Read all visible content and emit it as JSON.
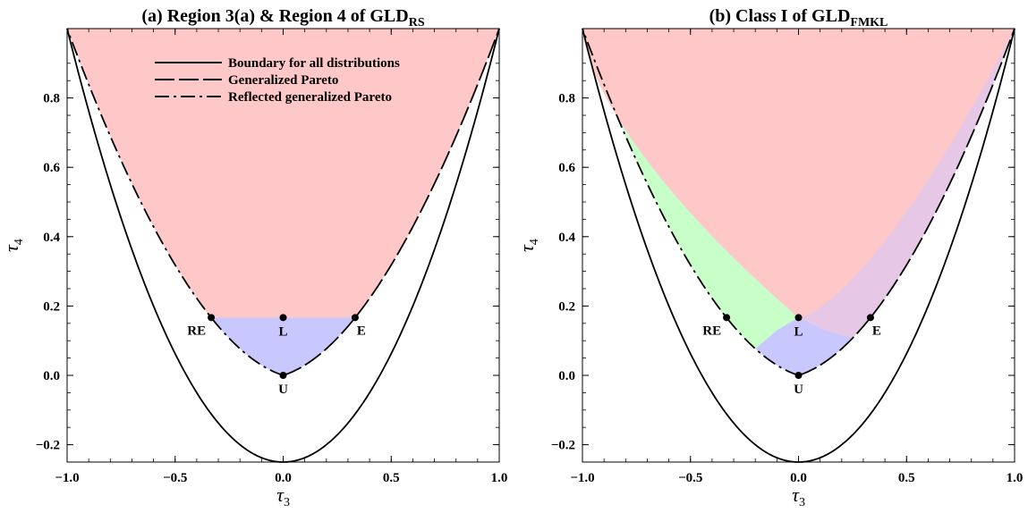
{
  "chart_data": [
    {
      "type": "area",
      "title": "(a) Region 3(a) & Region 4 of GLD",
      "title_subscript": "RS",
      "xlabel": "τ",
      "xlabel_subscript": "3",
      "ylabel": "τ",
      "ylabel_subscript": "4",
      "xlim": [
        -1.0,
        1.0
      ],
      "ylim": [
        -0.25,
        1.0
      ],
      "xticks": [
        -1.0,
        -0.5,
        0.0,
        0.5,
        1.0
      ],
      "xtick_labels": [
        "−1.0",
        "−0.5",
        "0.0",
        "0.5",
        "1.0"
      ],
      "yticks": [
        -0.2,
        0.0,
        0.2,
        0.4,
        0.6,
        0.8
      ],
      "ytick_labels": [
        "−0.2",
        "0.0",
        "0.2",
        "0.4",
        "0.6",
        "0.8"
      ],
      "grid": false,
      "legend": {
        "placement": "top-center",
        "entries": [
          {
            "label": "Boundary for all distributions",
            "style": "solid"
          },
          {
            "label": "Generalized Pareto",
            "style": "long-dash"
          },
          {
            "label": "Reflected generalized Pareto",
            "style": "dash-dot"
          }
        ]
      },
      "curves": [
        {
          "name": "Boundary for all distributions",
          "style": "solid",
          "formula": "tau4 = (5*tau3^2 - 1)/4",
          "x_range": [
            -1,
            1
          ]
        },
        {
          "name": "Generalized Pareto",
          "style": "long-dash",
          "formula": "tau4 = tau3*(1+5*tau3)/(5+tau3)",
          "x_range": [
            0,
            1
          ]
        },
        {
          "name": "Reflected generalized Pareto",
          "style": "dash-dot",
          "formula": "tau4 = -tau3*(1-5*tau3)/(5-tau3)",
          "x_range": [
            -1,
            0
          ]
        }
      ],
      "regions": [
        {
          "color": "#ffc8c8",
          "description": "above tau4 = 1/6 between the Pareto curves"
        },
        {
          "color": "#c8c8ff",
          "description": "between the Pareto curves below tau4 = 1/6"
        }
      ],
      "points": [
        {
          "label": "RE",
          "x": -0.333,
          "y": 0.1667
        },
        {
          "label": "L",
          "x": 0.0,
          "y": 0.1667
        },
        {
          "label": "E",
          "x": 0.333,
          "y": 0.1667
        },
        {
          "label": "U",
          "x": 0.0,
          "y": 0.0
        }
      ]
    },
    {
      "type": "area",
      "title": "(b) Class I of GLD",
      "title_subscript": "FMKL",
      "xlabel": "τ",
      "xlabel_subscript": "3",
      "ylabel": "τ",
      "ylabel_subscript": "4",
      "xlim": [
        -1.0,
        1.0
      ],
      "ylim": [
        -0.25,
        1.0
      ],
      "xticks": [
        -1.0,
        -0.5,
        0.0,
        0.5,
        1.0
      ],
      "xtick_labels": [
        "−1.0",
        "−0.5",
        "0.0",
        "0.5",
        "1.0"
      ],
      "yticks": [
        -0.2,
        0.0,
        0.2,
        0.4,
        0.6,
        0.8
      ],
      "ytick_labels": [
        "−0.2",
        "0.0",
        "0.2",
        "0.4",
        "0.6",
        "0.8"
      ],
      "grid": false,
      "curves": [
        {
          "name": "Boundary for all distributions",
          "style": "solid",
          "formula": "tau4 = (5*tau3^2 - 1)/4",
          "x_range": [
            -1,
            1
          ]
        },
        {
          "name": "Generalized Pareto",
          "style": "long-dash",
          "formula": "tau4 = tau3*(1+5*tau3)/(5+tau3)",
          "x_range": [
            0,
            1
          ]
        },
        {
          "name": "Reflected generalized Pareto",
          "style": "dash-dot",
          "formula": "tau4 = -tau3*(1-5*tau3)/(5-tau3)",
          "x_range": [
            -1,
            0
          ]
        }
      ],
      "regions": [
        {
          "color": "#ffc8c8",
          "description": "upper region above the two inner curves"
        },
        {
          "color": "#c8ffc8",
          "description": "left wedge"
        },
        {
          "color": "#e6c8e6",
          "description": "right wedge"
        },
        {
          "color": "#c8c8ff",
          "description": "lower central region"
        }
      ],
      "points": [
        {
          "label": "RE",
          "x": -0.333,
          "y": 0.1667
        },
        {
          "label": "L",
          "x": 0.0,
          "y": 0.1667
        },
        {
          "label": "E",
          "x": 0.333,
          "y": 0.1667
        },
        {
          "label": "U",
          "x": 0.0,
          "y": 0.0
        }
      ]
    }
  ]
}
